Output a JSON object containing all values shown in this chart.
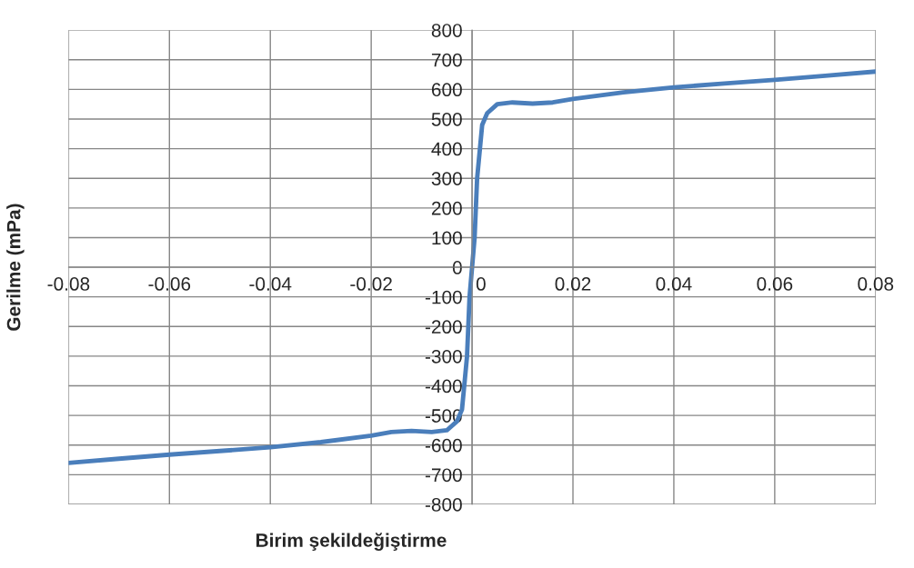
{
  "chart_data": {
    "type": "line",
    "xlabel": "Birim şekildeğiştirme",
    "ylabel": "Gerilme (mPa)",
    "series": [
      {
        "color": "#4a7ebb",
        "x": [
          -0.08,
          -0.07,
          -0.06,
          -0.05,
          -0.04,
          -0.03,
          -0.02,
          -0.016,
          -0.012,
          -0.008,
          -0.005,
          -0.003,
          -0.002,
          -0.001,
          -0.0005,
          0,
          0.0005,
          0.001,
          0.002,
          0.003,
          0.005,
          0.008,
          0.012,
          0.016,
          0.02,
          0.03,
          0.04,
          0.05,
          0.06,
          0.07,
          0.08
        ],
        "values": [
          -660,
          -646,
          -632,
          -620,
          -607,
          -590,
          -568,
          -556,
          -552,
          -556,
          -550,
          -520,
          -480,
          -300,
          -100,
          0,
          100,
          300,
          480,
          520,
          550,
          556,
          552,
          556,
          568,
          590,
          607,
          620,
          632,
          646,
          660
        ]
      }
    ],
    "xlim": [
      -0.08,
      0.08
    ],
    "xticks": [
      -0.08,
      -0.06,
      -0.04,
      -0.02,
      0,
      0.02,
      0.04,
      0.06,
      0.08
    ],
    "ylim": [
      -800,
      800
    ],
    "yticks": [
      -800,
      -700,
      -600,
      -500,
      -400,
      -300,
      -200,
      -100,
      0,
      100,
      200,
      300,
      400,
      500,
      600,
      700,
      800
    ],
    "grid": true,
    "marker": "none",
    "line_style": "solid",
    "legend": false
  }
}
